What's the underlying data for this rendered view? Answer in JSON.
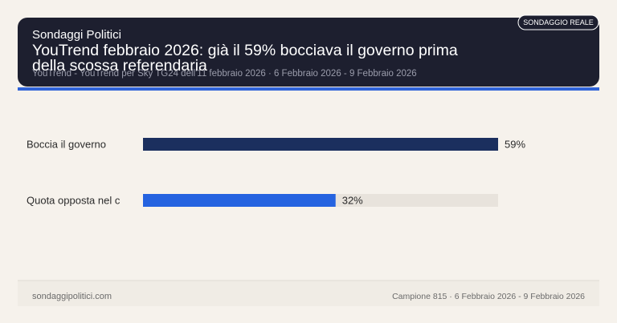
{
  "header": {
    "site": "Sondaggi Politici",
    "badge": "SONDAGGIO REALE",
    "title_lines": [
      "YouTrend febbraio 2026: già il 59% bocciava il governo prima",
      "della scossa referendaria"
    ],
    "subtitle": "YouTrend - YouTrend per Sky TG24 dell'11 febbraio 2026 · 6 Febbraio 2026 - 9 Febbraio 2026"
  },
  "chart_data": {
    "type": "bar",
    "orientation": "horizontal",
    "categories": [
      "Boccia il governo",
      "Quota opposta nel c"
    ],
    "values": [
      59,
      32
    ],
    "value_labels": [
      "59%",
      "32%"
    ],
    "colors": [
      "#1b2f5e",
      "#2563e0"
    ]
  },
  "footer": {
    "left": "sondaggipolitici.com",
    "right": "Campione 815 · 6 Febbraio 2026 - 9 Febbraio 2026"
  }
}
